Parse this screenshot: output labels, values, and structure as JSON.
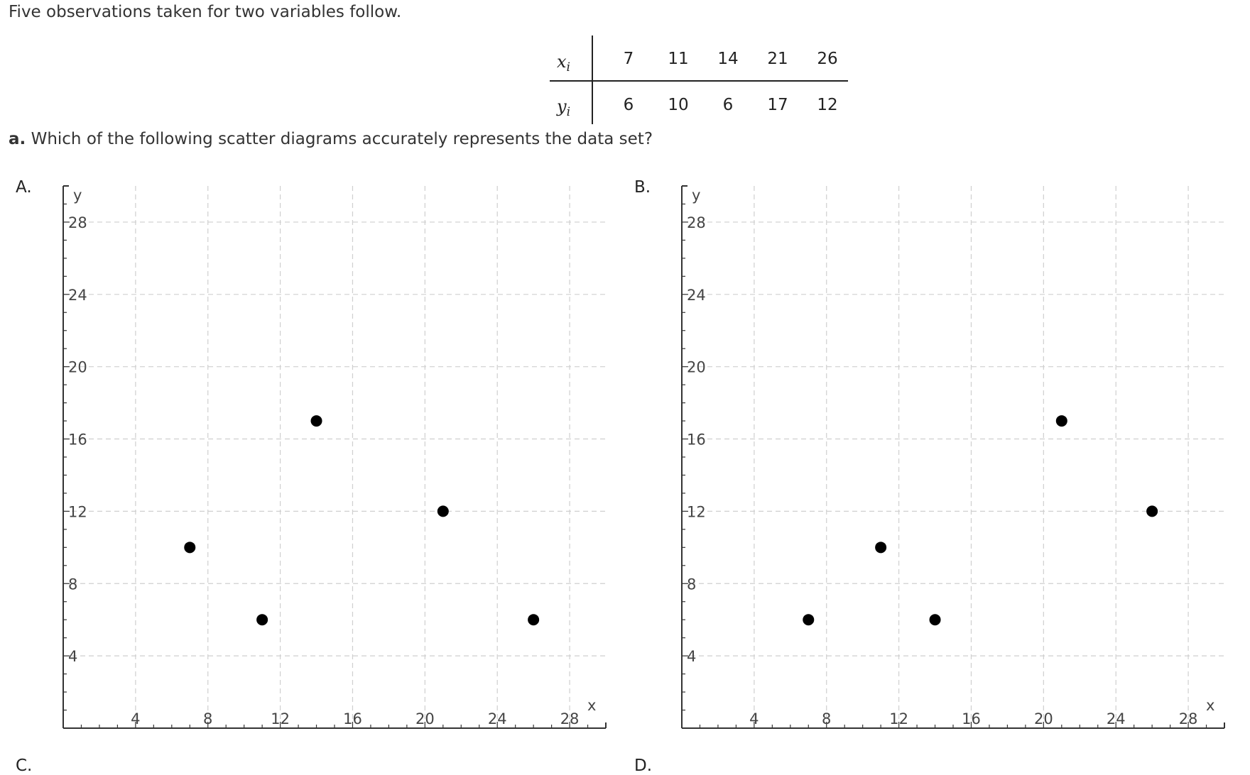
{
  "intro": "Five observations taken for two variables follow.",
  "table": {
    "x_label": "x",
    "x_sub": "i",
    "y_label": "y",
    "y_sub": "i",
    "x_values": [
      "7",
      "11",
      "14",
      "21",
      "26"
    ],
    "y_values": [
      "6",
      "10",
      "6",
      "17",
      "12"
    ]
  },
  "question": {
    "letter": "a.",
    "text": "Which of the following scatter diagrams accurately represents the data set?"
  },
  "chart_data": [
    {
      "option": "A.",
      "type": "scatter",
      "xlabel": "x",
      "ylabel": "y",
      "xlim": [
        0,
        30
      ],
      "ylim": [
        0,
        30
      ],
      "x_ticks": [
        4,
        8,
        12,
        16,
        20,
        24,
        28
      ],
      "y_ticks": [
        4,
        8,
        12,
        16,
        20,
        24,
        28
      ],
      "grid": true,
      "points": [
        {
          "x": 7,
          "y": 10
        },
        {
          "x": 11,
          "y": 6
        },
        {
          "x": 14,
          "y": 17
        },
        {
          "x": 21,
          "y": 12
        },
        {
          "x": 26,
          "y": 6
        }
      ]
    },
    {
      "option": "B.",
      "type": "scatter",
      "xlabel": "x",
      "ylabel": "y",
      "xlim": [
        0,
        30
      ],
      "ylim": [
        0,
        30
      ],
      "x_ticks": [
        4,
        8,
        12,
        16,
        20,
        24,
        28
      ],
      "y_ticks": [
        4,
        8,
        12,
        16,
        20,
        24,
        28
      ],
      "grid": true,
      "points": [
        {
          "x": 7,
          "y": 6
        },
        {
          "x": 11,
          "y": 10
        },
        {
          "x": 14,
          "y": 6
        },
        {
          "x": 21,
          "y": 17
        },
        {
          "x": 26,
          "y": 12
        }
      ]
    }
  ],
  "next_options": [
    "C.",
    "D."
  ]
}
